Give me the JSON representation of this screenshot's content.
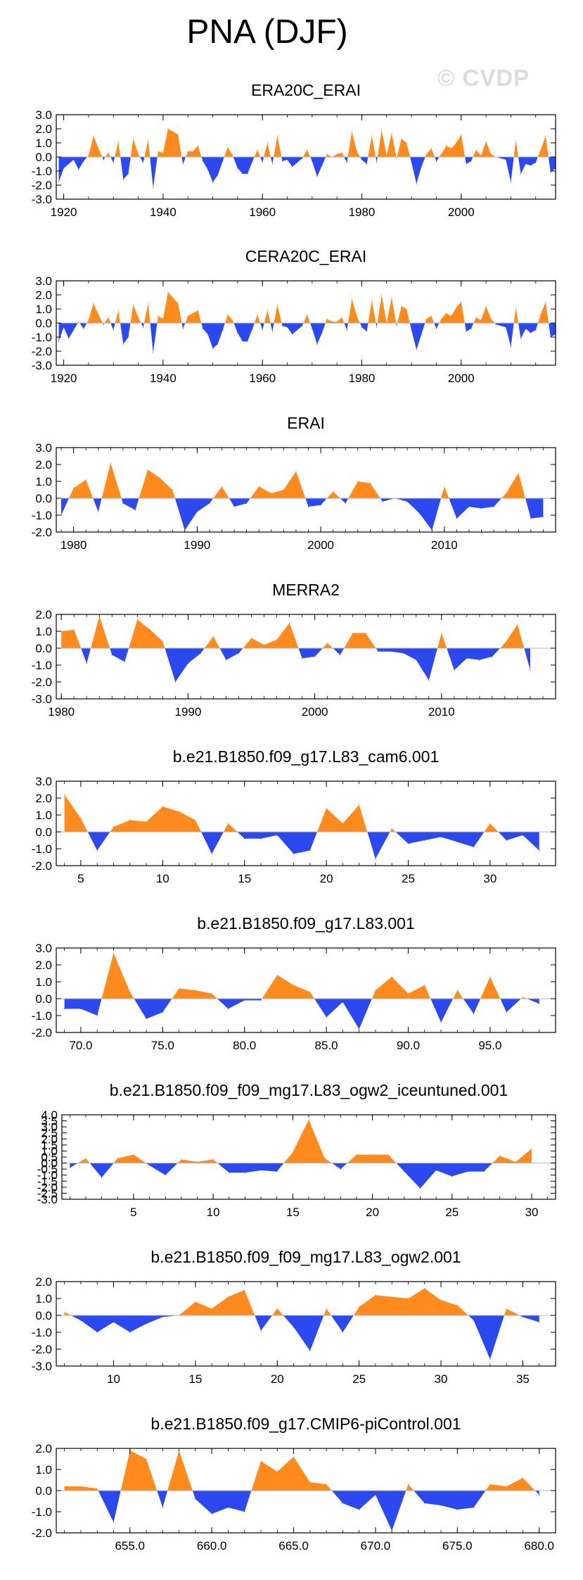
{
  "page": {
    "title": "PNA (DJF)",
    "watermark": "© CVDP",
    "colors": {
      "positive": "#ff8a1e",
      "negative": "#2c48f0",
      "axis": "#000000",
      "zero_line": "#b4b4b4"
    }
  },
  "chart_data": [
    {
      "type": "area",
      "title": "ERA20C_ERAI",
      "xlim": [
        1918.5,
        2019
      ],
      "ylim": [
        -3,
        3
      ],
      "yticks": [
        3,
        2,
        1,
        0,
        -1,
        -2,
        -3
      ],
      "ytick_labels": [
        "3.0",
        "2.0",
        "1.0",
        "0.0",
        "-1.0",
        "-2.0",
        "-3.0"
      ],
      "xticks": [
        1920,
        1940,
        1960,
        1980,
        2000
      ],
      "xtick_labels": [
        "1920",
        "1940",
        "1960",
        "1980",
        "2000"
      ],
      "x_start": 1919,
      "values": [
        -1.8,
        -0.8,
        -0.5,
        -0.2,
        -0.9,
        -0.3,
        0.1,
        1.5,
        0.6,
        -0.2,
        0.3,
        -0.4,
        1.1,
        -1.6,
        -1.2,
        1.3,
        0.2,
        -0.4,
        1.2,
        -2.2,
        0.4,
        0.3,
        2.0,
        1.8,
        1.6,
        -0.5,
        0.4,
        0.4,
        0.8,
        -0.3,
        -0.9,
        -1.8,
        -1.3,
        -0.3,
        0.7,
        0.1,
        -0.8,
        -1.2,
        -1.2,
        -0.3,
        0.5,
        -0.4,
        1.0,
        -0.5,
        1.5,
        -0.3,
        -0.2,
        -0.7,
        -0.4,
        -0.1,
        0.5,
        -0.3,
        -1.4,
        -0.6,
        0.2,
        0.0,
        0.2,
        0.3,
        -0.4,
        1.8,
        0.4,
        -0.2,
        -0.5,
        1.5,
        -0.4,
        1.9,
        0.1,
        1.7,
        -0.1,
        1.3,
        1.0,
        -0.4,
        -1.9,
        -0.7,
        0.2,
        0.6,
        -0.3,
        0.2,
        0.8,
        0.6,
        1.0,
        1.6,
        -0.5,
        -0.3,
        0.5,
        0.1,
        1.1,
        0.2,
        0.0,
        -0.1,
        -0.2,
        -1.8,
        1.2,
        -1.2,
        -0.5,
        -0.6,
        -0.4,
        0.5,
        1.5,
        -1.1,
        -0.8
      ]
    },
    {
      "type": "area",
      "title": "CERA20C_ERAI",
      "xlim": [
        1918.5,
        2019
      ],
      "ylim": [
        -3,
        3
      ],
      "yticks": [
        3,
        2,
        1,
        0,
        -1,
        -2,
        -3
      ],
      "ytick_labels": [
        "3.0",
        "2.0",
        "1.0",
        "0.0",
        "-1.0",
        "-2.0",
        "-3.0"
      ],
      "xticks": [
        1920,
        1940,
        1960,
        1980,
        2000
      ],
      "xtick_labels": [
        "1920",
        "1940",
        "1960",
        "1980",
        "2000"
      ],
      "x_start": 1919,
      "values": [
        -1.3,
        -0.3,
        -1.1,
        -0.5,
        0.1,
        -0.4,
        0.2,
        1.4,
        0.6,
        -0.1,
        0.4,
        -0.5,
        0.9,
        -1.5,
        -1.0,
        1.3,
        0.4,
        -0.3,
        1.4,
        -2.1,
        0.5,
        0.3,
        2.2,
        1.8,
        1.4,
        -0.4,
        0.5,
        0.7,
        0.9,
        -0.4,
        -0.8,
        -1.8,
        -1.5,
        -0.5,
        0.6,
        0.2,
        -0.7,
        -1.3,
        -1.3,
        -0.4,
        0.6,
        -0.5,
        0.9,
        -0.6,
        1.3,
        -0.2,
        -0.3,
        -0.8,
        -0.5,
        -0.2,
        0.6,
        -0.4,
        -1.5,
        -0.7,
        0.3,
        0.1,
        0.1,
        0.4,
        -0.5,
        1.7,
        0.5,
        -0.3,
        -0.6,
        1.6,
        -0.3,
        2.0,
        0.0,
        1.8,
        -0.2,
        1.2,
        1.0,
        -0.5,
        -1.9,
        -0.8,
        0.3,
        0.5,
        -0.4,
        0.3,
        0.7,
        0.5,
        1.1,
        1.5,
        -0.6,
        -0.4,
        0.4,
        0.2,
        1.2,
        0.3,
        -0.1,
        -0.2,
        -0.3,
        -1.7,
        1.1,
        -1.1,
        -0.4,
        -0.7,
        -0.5,
        0.6,
        1.5,
        -1.0,
        -0.8
      ]
    },
    {
      "type": "area",
      "title": "ERAI",
      "xlim": [
        1978.6,
        2019
      ],
      "ylim": [
        -2,
        3
      ],
      "yticks": [
        3,
        2,
        1,
        0,
        -1,
        -2
      ],
      "ytick_labels": [
        "3.0",
        "2.0",
        "1.0",
        "0.0",
        "-1.0",
        "-2.0"
      ],
      "xticks": [
        1980,
        1990,
        2000,
        2010
      ],
      "xtick_labels": [
        "1980",
        "1990",
        "2000",
        "2010"
      ],
      "x_start": 1979,
      "values": [
        -1.0,
        0.6,
        1.1,
        -0.8,
        2.1,
        -0.3,
        -0.7,
        1.7,
        1.2,
        0.5,
        -1.9,
        -0.8,
        -0.3,
        0.7,
        -0.5,
        -0.3,
        0.7,
        0.3,
        0.5,
        1.6,
        -0.5,
        -0.4,
        0.4,
        -0.3,
        1.0,
        0.9,
        -0.2,
        0.0,
        -0.2,
        -0.9,
        -1.9,
        0.7,
        -1.2,
        -0.5,
        -0.6,
        -0.5,
        0.3,
        1.5,
        -1.2,
        -1.1
      ]
    },
    {
      "type": "area",
      "title": "MERRA2",
      "xlim": [
        1979.6,
        2019
      ],
      "ylim": [
        -3,
        2
      ],
      "yticks": [
        2,
        1,
        0,
        -1,
        -2,
        -3
      ],
      "ytick_labels": [
        "2.0",
        "1.0",
        "0.0",
        "-1.0",
        "-2.0",
        "-3.0"
      ],
      "xticks": [
        1980,
        1990,
        2000,
        2010
      ],
      "xtick_labels": [
        "1980",
        "1990",
        "2000",
        "2010"
      ],
      "x_start": 1980,
      "values": [
        1.0,
        1.1,
        -0.9,
        1.9,
        -0.4,
        -0.8,
        1.7,
        1.1,
        0.4,
        -2.0,
        -0.9,
        -0.3,
        0.7,
        -0.7,
        -0.3,
        0.6,
        0.2,
        0.5,
        1.5,
        -0.6,
        -0.5,
        0.3,
        -0.4,
        0.9,
        0.9,
        -0.2,
        -0.2,
        -0.3,
        -0.7,
        -1.9,
        0.9,
        -1.3,
        -0.6,
        -0.7,
        -0.5,
        0.3,
        1.4,
        -1.3
      ]
    },
    {
      "type": "area",
      "title": "b.e21.B1850.f09_g17.L83_cam6.001",
      "xlim": [
        3.5,
        34
      ],
      "ylim": [
        -2,
        3
      ],
      "yticks": [
        3,
        2,
        1,
        0,
        -1,
        -2
      ],
      "ytick_labels": [
        "3.0",
        "2.0",
        "1.0",
        "0.0",
        "-1.0",
        "-2.0"
      ],
      "xticks": [
        5,
        10,
        15,
        20,
        25,
        30
      ],
      "xtick_labels": [
        "5",
        "10",
        "15",
        "20",
        "25",
        "30"
      ],
      "x_start": 4,
      "values": [
        2.2,
        0.8,
        -1.1,
        0.3,
        0.7,
        0.6,
        1.5,
        1.2,
        0.7,
        -1.3,
        0.5,
        -0.4,
        -0.4,
        -0.2,
        -1.3,
        -1.1,
        1.4,
        0.5,
        1.6,
        -1.6,
        0.2,
        -0.7,
        -0.5,
        -0.3,
        -0.6,
        -0.9,
        0.5,
        -0.5,
        -0.2,
        -1.1
      ]
    },
    {
      "type": "area",
      "title": "b.e21.B1850.f09_g17.L83.001",
      "xlim": [
        68.5,
        99
      ],
      "ylim": [
        -2,
        3
      ],
      "yticks": [
        3,
        2,
        1,
        0,
        -1,
        -2
      ],
      "ytick_labels": [
        "3.0",
        "2.0",
        "1.0",
        "0.0",
        "-1.0",
        "-2.0"
      ],
      "xticks": [
        70,
        75,
        80,
        85,
        90,
        95
      ],
      "xtick_labels": [
        "70.0",
        "75.0",
        "80.0",
        "85.0",
        "90.0",
        "95.0"
      ],
      "x_start": 69,
      "values": [
        -0.6,
        -0.6,
        -1.0,
        2.7,
        0.4,
        -1.2,
        -0.8,
        0.6,
        0.5,
        0.3,
        -0.6,
        -0.1,
        -0.1,
        1.4,
        0.8,
        0.4,
        -1.1,
        -0.2,
        -1.8,
        0.5,
        1.3,
        0.3,
        0.8,
        -1.4,
        0.5,
        -0.9,
        1.3,
        -0.8,
        0.1,
        -0.3
      ]
    },
    {
      "type": "area",
      "title": "b.e21.B1850.f09_f09_mg17.L83_ogw2_iceuntuned.001",
      "xlim": [
        0.5,
        31.5
      ],
      "ylim": [
        -3,
        4
      ],
      "yticks": [
        4,
        3.5,
        3,
        2.5,
        2,
        1.5,
        1,
        0.5,
        0,
        -0.5,
        -1,
        -1.5,
        -2,
        -2.5,
        -3
      ],
      "ytick_labels": [
        "4.0",
        "3.5",
        "3.0",
        "2.5",
        "2.0",
        "1.5",
        "1.0",
        "0.5",
        "0.0",
        "-0.5",
        "-1.0",
        "-1.5",
        "-2.0",
        "-2.5",
        "-3.0"
      ],
      "xticks": [
        5,
        10,
        15,
        20,
        25,
        30
      ],
      "xtick_labels": [
        "5",
        "10",
        "15",
        "20",
        "25",
        "30"
      ],
      "x_start": 1,
      "values": [
        -0.4,
        0.4,
        -1.2,
        0.4,
        0.7,
        -0.2,
        -1.0,
        0.3,
        0.1,
        0.3,
        -0.8,
        -0.8,
        -0.6,
        -0.7,
        0.9,
        3.6,
        0.4,
        -0.5,
        0.7,
        0.7,
        0.7,
        -0.7,
        -2.1,
        -0.6,
        -1.1,
        -0.7,
        -0.7,
        0.6,
        0.1,
        1.2
      ]
    },
    {
      "type": "area",
      "title": "b.e21.B1850.f09_f09_mg17.L83_ogw2.001",
      "xlim": [
        6.5,
        37
      ],
      "ylim": [
        -3,
        2
      ],
      "yticks": [
        2,
        1,
        0,
        -1,
        -2,
        -3
      ],
      "ytick_labels": [
        "2.0",
        "1.0",
        "0.0",
        "-1.0",
        "-2.0",
        "-3.0"
      ],
      "xticks": [
        10,
        15,
        20,
        25,
        30,
        35
      ],
      "xtick_labels": [
        "10",
        "15",
        "20",
        "25",
        "30",
        "35"
      ],
      "x_start": 7,
      "values": [
        0.2,
        -0.3,
        -1.0,
        -0.4,
        -1.0,
        -0.5,
        -0.1,
        0.0,
        0.8,
        0.4,
        1.1,
        1.5,
        -0.9,
        0.4,
        -0.7,
        -2.1,
        0.4,
        -1.0,
        0.5,
        1.2,
        1.1,
        1.0,
        1.6,
        0.9,
        0.6,
        -0.3,
        -2.6,
        0.4,
        -0.1,
        -0.4
      ]
    },
    {
      "type": "area",
      "title": "b.e21.B1850.f09_g17.CMIP6-piControl.001",
      "xlim": [
        650.5,
        681
      ],
      "ylim": [
        -2,
        2
      ],
      "yticks": [
        2,
        1,
        0,
        -1,
        -2
      ],
      "ytick_labels": [
        "2.0",
        "1.0",
        "0.0",
        "-1.0",
        "-2.0"
      ],
      "xticks": [
        655,
        660,
        665,
        670,
        675,
        680
      ],
      "xtick_labels": [
        "655.0",
        "660.0",
        "665.0",
        "670.0",
        "675.0",
        "680.0"
      ],
      "x_start": 651,
      "values": [
        0.2,
        0.2,
        0.1,
        -1.5,
        1.9,
        1.5,
        -0.8,
        1.9,
        -0.4,
        -1.1,
        -0.8,
        -1.0,
        1.4,
        0.9,
        1.6,
        0.4,
        0.3,
        -0.6,
        -0.9,
        -0.2,
        -1.9,
        0.3,
        -0.6,
        -0.7,
        -0.9,
        -0.8,
        0.3,
        0.2,
        0.6,
        -0.2
      ]
    }
  ]
}
